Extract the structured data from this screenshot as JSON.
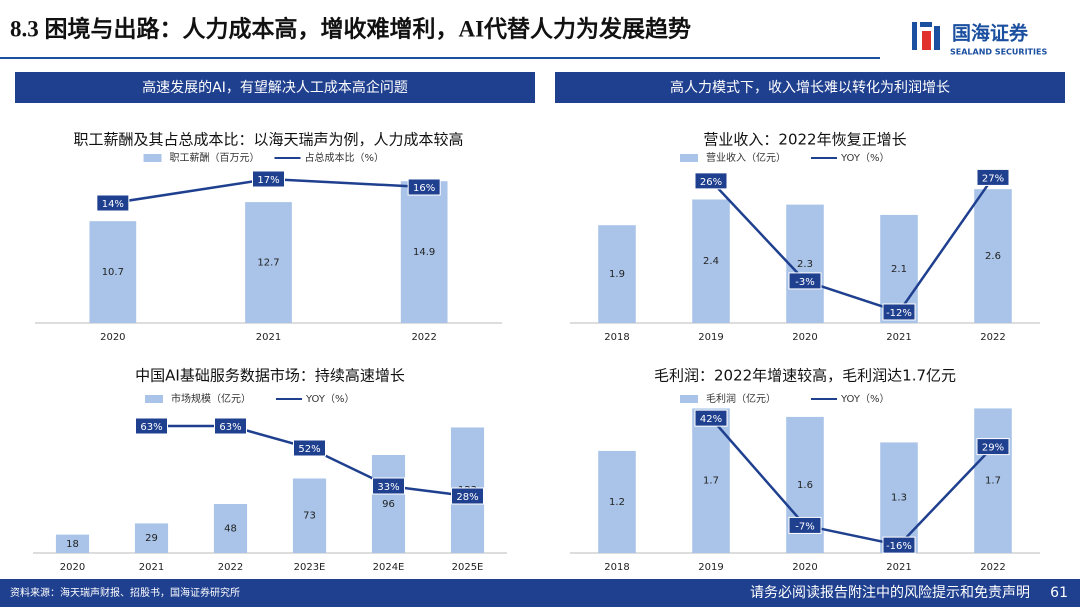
{
  "header": {
    "title": "8.3 困境与出路：人力成本高，增收难增利，AI代替人力为发展趋势",
    "logo_cn": "国海证券",
    "logo_en": "SEALAND SECURITIES"
  },
  "panels": [
    "高速发展的AI，有望解决人工成本高企问题",
    "高人力模式下，收入增长难以转化为利润增长"
  ],
  "chart_data": [
    {
      "type": "bar-line",
      "title": "职工薪酬及其占总成本比：以海天瑞声为例，人力成本较高",
      "categories": [
        "2020",
        "2021",
        "2022"
      ],
      "series": [
        {
          "name": "职工薪酬（百万元）",
          "type": "bar",
          "color": "#a9c4e8",
          "values": [
            10.7,
            12.7,
            14.9
          ]
        },
        {
          "name": "占总成本比（%）",
          "type": "line",
          "axis": "y2",
          "color": "#1f3f8f",
          "values": [
            14,
            17,
            16
          ],
          "value_labels": [
            "14%",
            "17%",
            "16%"
          ]
        }
      ],
      "ylim": [
        0,
        16.6
      ],
      "y2lim": [
        -1,
        18.75
      ]
    },
    {
      "type": "bar-line",
      "title": "营业收入：2022年恢复正增长",
      "categories": [
        "2018",
        "2019",
        "2020",
        "2021",
        "2022"
      ],
      "series": [
        {
          "name": "营业收入（亿元）",
          "type": "bar",
          "color": "#a9c4e8",
          "values": [
            1.9,
            2.4,
            2.3,
            2.1,
            2.6
          ]
        },
        {
          "name": "YOY（%）",
          "type": "line",
          "axis": "y2",
          "color": "#1f3f8f",
          "values": [
            null,
            26,
            -3,
            -12,
            27
          ],
          "value_labels": [
            null,
            "26%",
            "-3%",
            "-12%",
            "27%"
          ]
        }
      ],
      "ylim": [
        0,
        3.07
      ],
      "y2lim": [
        -15.2,
        30.6
      ]
    },
    {
      "type": "bar-line",
      "title": "中国AI基础服务数据市场：持续高速增长",
      "categories": [
        "2020",
        "2021",
        "2022",
        "2023E",
        "2024E",
        "2025E"
      ],
      "series": [
        {
          "name": "市场规模（亿元）",
          "type": "bar",
          "color": "#a9c4e8",
          "values": [
            18,
            29,
            48,
            73,
            96,
            123
          ]
        },
        {
          "name": "YOY（%）",
          "type": "line",
          "axis": "y2",
          "color": "#1f3f8f",
          "values": [
            null,
            63,
            63,
            52,
            33,
            28
          ],
          "value_labels": [
            null,
            "63%",
            "63%",
            "52%",
            "33%",
            "28%"
          ]
        }
      ],
      "ylim": [
        0,
        145
      ],
      "y2lim": [
        -0.5,
        73.5
      ]
    },
    {
      "type": "bar-line",
      "title": "毛利润：2022年增速较高，毛利润达1.7亿元",
      "categories": [
        "2018",
        "2019",
        "2020",
        "2021",
        "2022"
      ],
      "series": [
        {
          "name": "毛利润（亿元）",
          "type": "bar",
          "color": "#a9c4e8",
          "values": [
            1.2,
            1.7,
            1.6,
            1.3,
            1.7
          ]
        },
        {
          "name": "YOY（%）",
          "type": "line",
          "axis": "y2",
          "color": "#1f3f8f",
          "values": [
            null,
            42,
            -7,
            -16,
            29
          ],
          "value_labels": [
            null,
            "42%",
            "-7%",
            "-16%",
            "29%"
          ]
        }
      ],
      "ylim": [
        0,
        1.74
      ],
      "y2lim": [
        -19.6,
        48
      ]
    }
  ],
  "footer": {
    "source": "资料来源：海天瑞声财报、招股书，国海证券研究所",
    "disclaimer": "请务必阅读报告附注中的风险提示和免责声明",
    "page": 61
  }
}
